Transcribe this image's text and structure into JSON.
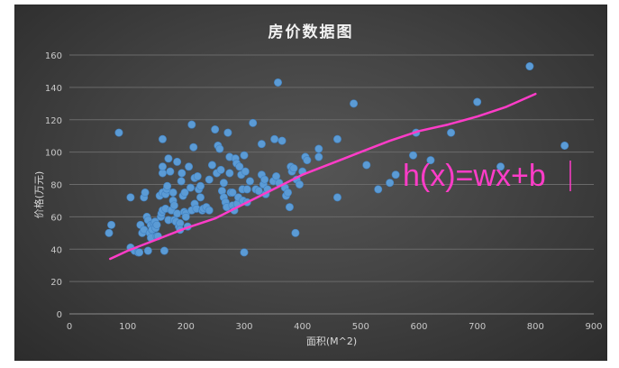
{
  "chart_data": {
    "type": "scatter",
    "title": "房价数据图",
    "xlabel": "面积(M^2)",
    "ylabel": "价格(万元)",
    "xlim": [
      0,
      900
    ],
    "ylim": [
      0,
      160
    ],
    "xticks": [
      0,
      100,
      200,
      300,
      400,
      500,
      600,
      700,
      800,
      900
    ],
    "yticks": [
      0,
      20,
      40,
      60,
      80,
      100,
      120,
      140,
      160
    ],
    "grid": "horizontal",
    "point_color": "#5b9bd5",
    "line_color": "#ff3cc8",
    "annotation": "h(x)=wx+b",
    "points": [
      [
        68,
        50
      ],
      [
        72,
        55
      ],
      [
        85,
        112
      ],
      [
        105,
        72
      ],
      [
        105,
        41
      ],
      [
        112,
        39
      ],
      [
        118,
        38
      ],
      [
        120,
        38
      ],
      [
        122,
        55
      ],
      [
        125,
        50
      ],
      [
        128,
        72
      ],
      [
        130,
        75
      ],
      [
        128,
        52
      ],
      [
        133,
        60
      ],
      [
        135,
        58
      ],
      [
        135,
        39
      ],
      [
        138,
        50
      ],
      [
        140,
        47
      ],
      [
        140,
        55
      ],
      [
        142,
        52
      ],
      [
        145,
        56
      ],
      [
        147,
        57
      ],
      [
        148,
        53
      ],
      [
        150,
        55
      ],
      [
        150,
        48
      ],
      [
        152,
        48
      ],
      [
        155,
        73
      ],
      [
        157,
        60
      ],
      [
        158,
        62
      ],
      [
        160,
        64
      ],
      [
        160,
        75
      ],
      [
        160,
        87
      ],
      [
        160,
        91
      ],
      [
        160,
        108
      ],
      [
        163,
        39
      ],
      [
        165,
        65
      ],
      [
        165,
        74
      ],
      [
        167,
        77
      ],
      [
        168,
        79
      ],
      [
        170,
        96
      ],
      [
        170,
        58
      ],
      [
        173,
        88
      ],
      [
        175,
        64
      ],
      [
        178,
        75
      ],
      [
        178,
        70
      ],
      [
        180,
        67
      ],
      [
        180,
        58
      ],
      [
        183,
        57
      ],
      [
        185,
        94
      ],
      [
        185,
        62
      ],
      [
        188,
        54
      ],
      [
        190,
        56
      ],
      [
        190,
        52
      ],
      [
        192,
        82
      ],
      [
        193,
        87
      ],
      [
        195,
        73
      ],
      [
        197,
        63
      ],
      [
        198,
        75
      ],
      [
        200,
        62
      ],
      [
        200,
        60
      ],
      [
        203,
        54
      ],
      [
        205,
        91
      ],
      [
        208,
        78
      ],
      [
        210,
        117
      ],
      [
        210,
        64
      ],
      [
        213,
        103
      ],
      [
        215,
        84
      ],
      [
        215,
        68
      ],
      [
        218,
        65
      ],
      [
        220,
        85
      ],
      [
        222,
        77
      ],
      [
        225,
        79
      ],
      [
        225,
        72
      ],
      [
        228,
        64
      ],
      [
        230,
        65
      ],
      [
        235,
        66
      ],
      [
        240,
        83
      ],
      [
        240,
        64
      ],
      [
        245,
        92
      ],
      [
        250,
        114
      ],
      [
        253,
        87
      ],
      [
        255,
        104
      ],
      [
        258,
        102
      ],
      [
        260,
        89
      ],
      [
        262,
        76
      ],
      [
        265,
        81
      ],
      [
        265,
        72
      ],
      [
        268,
        69
      ],
      [
        270,
        66
      ],
      [
        272,
        112
      ],
      [
        275,
        97
      ],
      [
        275,
        87
      ],
      [
        277,
        75
      ],
      [
        280,
        75
      ],
      [
        280,
        67
      ],
      [
        283,
        64
      ],
      [
        285,
        96
      ],
      [
        287,
        93
      ],
      [
        288,
        68
      ],
      [
        290,
        72
      ],
      [
        292,
        91
      ],
      [
        295,
        86
      ],
      [
        297,
        77
      ],
      [
        298,
        70
      ],
      [
        300,
        38
      ],
      [
        300,
        98
      ],
      [
        302,
        88
      ],
      [
        305,
        77
      ],
      [
        305,
        69
      ],
      [
        310,
        82
      ],
      [
        315,
        118
      ],
      [
        320,
        77
      ],
      [
        325,
        76
      ],
      [
        330,
        105
      ],
      [
        330,
        86
      ],
      [
        333,
        80
      ],
      [
        335,
        83
      ],
      [
        337,
        74
      ],
      [
        340,
        77
      ],
      [
        350,
        82
      ],
      [
        352,
        108
      ],
      [
        355,
        85
      ],
      [
        358,
        143
      ],
      [
        360,
        81
      ],
      [
        365,
        107
      ],
      [
        370,
        78
      ],
      [
        372,
        73
      ],
      [
        375,
        75
      ],
      [
        378,
        66
      ],
      [
        380,
        91
      ],
      [
        382,
        88
      ],
      [
        385,
        90
      ],
      [
        388,
        50
      ],
      [
        390,
        83
      ],
      [
        395,
        80
      ],
      [
        400,
        88
      ],
      [
        405,
        97
      ],
      [
        408,
        95
      ],
      [
        428,
        102
      ],
      [
        428,
        97
      ],
      [
        460,
        108
      ],
      [
        460,
        72
      ],
      [
        488,
        130
      ],
      [
        510,
        92
      ],
      [
        530,
        77
      ],
      [
        550,
        81
      ],
      [
        560,
        86
      ],
      [
        590,
        98
      ],
      [
        595,
        112
      ],
      [
        620,
        95
      ],
      [
        655,
        112
      ],
      [
        700,
        131
      ],
      [
        740,
        91
      ],
      [
        790,
        153
      ],
      [
        850,
        104
      ]
    ],
    "line": [
      [
        70,
        34
      ],
      [
        100,
        39
      ],
      [
        150,
        46
      ],
      [
        200,
        53
      ],
      [
        250,
        59
      ],
      [
        300,
        68
      ],
      [
        350,
        77
      ],
      [
        400,
        86
      ],
      [
        450,
        93
      ],
      [
        500,
        100
      ],
      [
        550,
        107
      ],
      [
        600,
        113
      ],
      [
        650,
        117
      ],
      [
        700,
        122
      ],
      [
        750,
        128
      ],
      [
        800,
        136
      ]
    ]
  }
}
